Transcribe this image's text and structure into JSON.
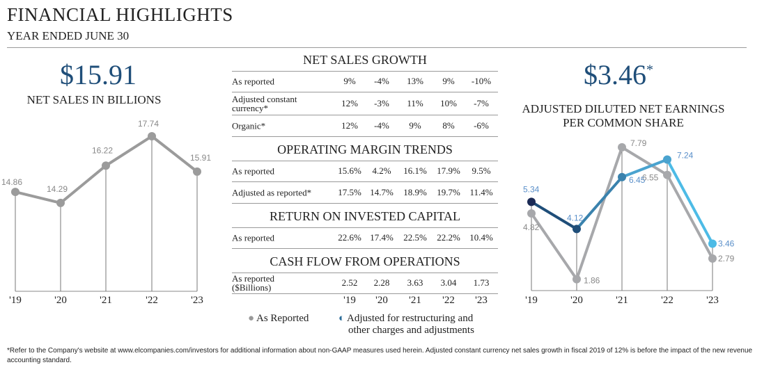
{
  "header": {
    "title": "FINANCIAL HIGHLIGHTS",
    "subtitle": "YEAR ENDED JUNE 30"
  },
  "left": {
    "value": "$15.91",
    "caption": "NET SALES IN BILLIONS"
  },
  "right": {
    "value": "$3.46",
    "asterisk": "*",
    "caption1": "ADJUSTED DILUTED NET EARNINGS",
    "caption2": "PER COMMON SHARE"
  },
  "tables": [
    {
      "title": "NET SALES GROWTH",
      "rows": [
        {
          "label": "As reported",
          "values": [
            "9%",
            "-4%",
            "13%",
            "9%",
            "-10%"
          ]
        },
        {
          "label": "Adjusted constant currency*",
          "values": [
            "12%",
            "-3%",
            "11%",
            "10%",
            "-7%"
          ]
        },
        {
          "label": "Organic*",
          "values": [
            "12%",
            "-4%",
            "9%",
            "8%",
            "-6%"
          ]
        }
      ]
    },
    {
      "title": "OPERATING MARGIN TRENDS",
      "rows": [
        {
          "label": "As reported",
          "values": [
            "15.6%",
            "4.2%",
            "16.1%",
            "17.9%",
            "9.5%"
          ]
        },
        {
          "label": "Adjusted as reported*",
          "values": [
            "17.5%",
            "14.7%",
            "18.9%",
            "19.7%",
            "11.4%"
          ]
        }
      ]
    },
    {
      "title": "RETURN ON INVESTED CAPITAL",
      "rows": [
        {
          "label": "As reported",
          "values": [
            "22.6%",
            "17.4%",
            "22.5%",
            "22.2%",
            "10.4%"
          ]
        }
      ]
    },
    {
      "title": "CASH FLOW FROM OPERATIONS",
      "rows": [
        {
          "label": "As reported ($Billions)",
          "values": [
            "2.52",
            "2.28",
            "3.63",
            "3.04",
            "1.73"
          ]
        }
      ]
    }
  ],
  "years": [
    "'19",
    "'20",
    "'21",
    "'22",
    "'23"
  ],
  "legend": {
    "reported": "As Reported",
    "adjusted1": "Adjusted for restructuring and",
    "adjusted2": "other charges and adjustments"
  },
  "footnote": "*Refer to the Company's website at www.elcompanies.com/investors for additional information about non-GAAP measures used herein. Adjusted constant currency net sales growth in fiscal 2019 of 12% is before the impact of the new revenue accounting standard.",
  "chart_data": [
    {
      "type": "line",
      "title": "NET SALES IN BILLIONS",
      "categories": [
        "'19",
        "'20",
        "'21",
        "'22",
        "'23"
      ],
      "series": [
        {
          "name": "Net sales",
          "values": [
            14.86,
            14.29,
            16.22,
            17.74,
            15.91
          ],
          "labels": [
            "14.86",
            "14.29",
            "16.22",
            "17.74",
            "15.91"
          ],
          "color": "#9b9b9b"
        }
      ]
    },
    {
      "type": "line",
      "title": "ADJUSTED DILUTED NET EARNINGS PER COMMON SHARE",
      "categories": [
        "'19",
        "'20",
        "'21",
        "'22",
        "'23"
      ],
      "series": [
        {
          "name": "As Reported",
          "values": [
            4.82,
            1.86,
            7.79,
            6.55,
            2.79
          ],
          "labels": [
            "4.82",
            "1.86",
            "7.79",
            "6.55",
            "2.79"
          ],
          "color": "#a7a8ab"
        },
        {
          "name": "Adjusted for restructuring and other charges and adjustments",
          "values": [
            5.34,
            4.12,
            6.45,
            7.24,
            3.46
          ],
          "labels": [
            "5.34",
            "4.12",
            "6.45",
            "7.24",
            "3.46"
          ],
          "colors": [
            "#1b2a55",
            "#1f4e79",
            "#3a82ad",
            "#4aa3cf",
            "#4dbbe6"
          ]
        }
      ]
    }
  ]
}
